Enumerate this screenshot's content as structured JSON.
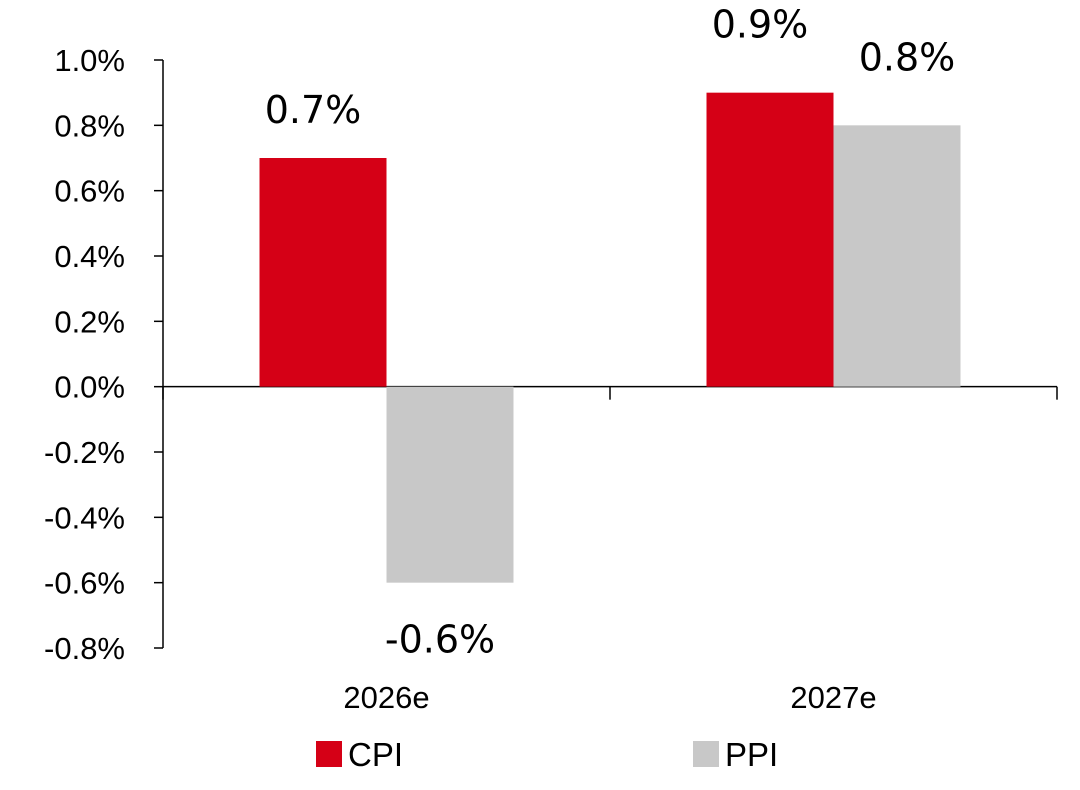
{
  "chart_data": {
    "type": "bar",
    "categories": [
      "2026e",
      "2027e"
    ],
    "series": [
      {
        "name": "CPI",
        "values": [
          0.7,
          0.9
        ],
        "labels": [
          "0.7%",
          "0.9%"
        ],
        "color": "#d50016"
      },
      {
        "name": "PPI",
        "values": [
          -0.6,
          0.8
        ],
        "labels": [
          "-0.6%",
          "0.8%"
        ],
        "color": "#c8c8c8"
      }
    ],
    "ylim": [
      -0.8,
      1.0
    ],
    "ytick_values": [
      1.0,
      0.8,
      0.6,
      0.4,
      0.2,
      0.0,
      -0.2,
      -0.4,
      -0.6,
      -0.8
    ],
    "ytick_labels": [
      "1.0%",
      "0.8%",
      "0.6%",
      "0.4%",
      "0.2%",
      "0.0%",
      "-0.2%",
      "-0.4%",
      "-0.6%",
      "-0.8%"
    ],
    "grid": false,
    "legend": "bottom",
    "title": "",
    "xlabel": "",
    "ylabel": ""
  }
}
